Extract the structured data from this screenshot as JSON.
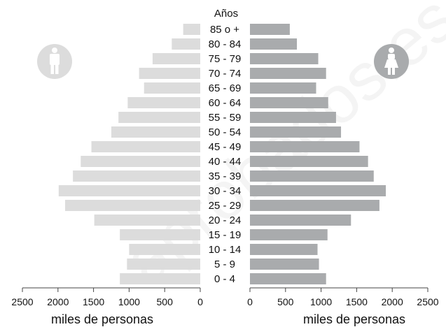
{
  "chart_data": {
    "type": "bar",
    "subtype": "population-pyramid",
    "header": "Años",
    "categories": [
      "85 o +",
      "80 - 84",
      "75 - 79",
      "70 - 74",
      "65 - 69",
      "60 - 64",
      "55 - 59",
      "50 - 54",
      "45 - 49",
      "40 - 44",
      "35 - 39",
      "30 - 34",
      "25 - 29",
      "20 - 24",
      "15 - 19",
      "10 - 14",
      "5 - 9",
      "0 - 4"
    ],
    "series": [
      {
        "side": "left",
        "icon": "male-icon",
        "color": "#dcdcdc",
        "values": [
          240,
          400,
          670,
          860,
          790,
          1020,
          1150,
          1250,
          1530,
          1680,
          1790,
          1990,
          1900,
          1490,
          1130,
          1000,
          1030,
          1130
        ]
      },
      {
        "side": "right",
        "icon": "female-icon",
        "color": "#a9abad",
        "values": [
          560,
          660,
          960,
          1070,
          930,
          1100,
          1210,
          1280,
          1540,
          1660,
          1740,
          1910,
          1820,
          1420,
          1090,
          950,
          970,
          1070
        ]
      }
    ],
    "left_axis": {
      "ticks": [
        "2500",
        "2000",
        "1500",
        "1000",
        "500",
        "0"
      ],
      "range": [
        0,
        2500
      ],
      "label": "miles de personas"
    },
    "right_axis": {
      "ticks": [
        "0",
        "500",
        "1000",
        "1500",
        "2000",
        "2500"
      ],
      "range": [
        0,
        2500
      ],
      "label": "miles de personas"
    },
    "watermark": "aprobados.es"
  }
}
